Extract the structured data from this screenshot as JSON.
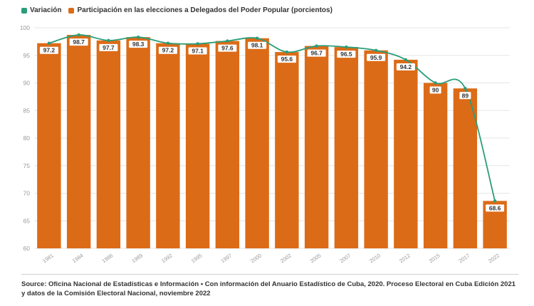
{
  "legend": {
    "line_label": "Variación",
    "bar_label": "Participación en las elecciones a Delegados del Poder Popular (porcientos)"
  },
  "colors": {
    "bar": "#dc6b17",
    "line": "#2a9d79",
    "grid": "#e6e6e6",
    "axis_text": "#9a9a9a",
    "label_bg": "#ffffff",
    "label_text": "#333333"
  },
  "chart_data": {
    "type": "bar",
    "categories": [
      "1981",
      "1984",
      "1986",
      "1989",
      "1992",
      "1995",
      "1997",
      "2000",
      "2002",
      "2005",
      "2007",
      "2010",
      "2012",
      "2015",
      "2017",
      "2022"
    ],
    "series": [
      {
        "name": "Participación en las elecciones a Delegados del Poder Popular (porcientos)",
        "type": "bar",
        "values": [
          97.2,
          98.7,
          97.7,
          98.3,
          97.2,
          97.1,
          97.6,
          98.1,
          95.6,
          96.7,
          96.5,
          95.9,
          94.2,
          90,
          89,
          68.6
        ]
      },
      {
        "name": "Variación",
        "type": "line",
        "values": [
          97.2,
          98.7,
          97.7,
          98.3,
          97.2,
          97.1,
          97.6,
          98.1,
          95.6,
          96.7,
          96.5,
          95.9,
          94.2,
          90,
          89,
          68.6
        ]
      }
    ],
    "data_labels": [
      "97.2",
      "98.7",
      "97.7",
      "98.3",
      "97.2",
      "97.1",
      "97.6",
      "98.1",
      "95.6",
      "96.7",
      "96.5",
      "95.9",
      "94.2",
      "90",
      "89",
      "68.6"
    ],
    "yticks": [
      60,
      65,
      70,
      75,
      80,
      85,
      90,
      95,
      100
    ],
    "ylim": [
      60,
      100
    ],
    "grid": true,
    "legend_position": "top-left"
  },
  "source": "Source: Oficina Nacional de Estadísticas e Información • Con información del Anuario Estadístico de Cuba, 2020. Proceso Electoral en Cuba Edición 2021 y datos de la Comisión Electoral Nacional, noviembre 2022"
}
